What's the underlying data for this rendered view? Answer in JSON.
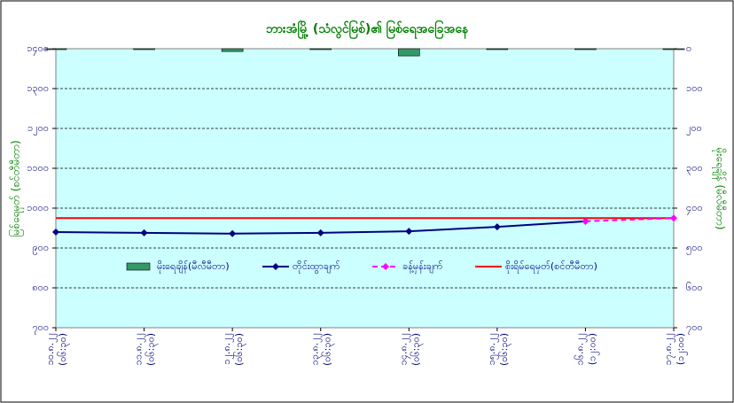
{
  "chart_data": {
    "type": "combo",
    "title": "ဘားအံမြို့ (သံလွင်မြစ်)၏ မြစ်ရေအခြေအနေ",
    "y_label": "မြစ်ရေမှတ် (စင်တီမီတာ)",
    "y2_label": "မိုးရေချိန် (မီလီမီတာ)",
    "categories": [
      "၁၀.၈.၂၂",
      "၁၁.၈.၂၂",
      "၁၂.၈.၂၂",
      "၁၃.၈.၂၂",
      "၁၄.၈.၂၂",
      "၁၅.၈.၂၂",
      "၁၆.၈.၂၂",
      "၁၇.၈.၂၂"
    ],
    "category_sublabels": [
      "(၀၆:၃၀)",
      "(၀၆:၃၀)",
      "(၀၆:၃၀)",
      "(၀၆:၃၀)",
      "(၀၆:၃၀)",
      "(၀၆:၃၀)",
      "(၁၂:၀၀)",
      "(၁၂:၀၀)"
    ],
    "ylim": [
      700,
      1400
    ],
    "yticks": [
      {
        "value": 700,
        "label": "၇၀၀"
      },
      {
        "value": 800,
        "label": "၈၀၀"
      },
      {
        "value": 900,
        "label": "၉၀၀"
      },
      {
        "value": 1000,
        "label": "၁၀၀၀"
      },
      {
        "value": 1100,
        "label": "၁၁၀၀"
      },
      {
        "value": 1200,
        "label": "၁၂၀၀"
      },
      {
        "value": 1300,
        "label": "၁၃၀၀"
      },
      {
        "value": 1400,
        "label": "၁၄၀၀"
      }
    ],
    "y2lim": [
      0,
      700
    ],
    "y2_inverted": true,
    "y2ticks": [
      {
        "value": 0,
        "label": "၀"
      },
      {
        "value": 100,
        "label": "၁၀၀"
      },
      {
        "value": 200,
        "label": "၂၀၀"
      },
      {
        "value": 300,
        "label": "၃၀၀"
      },
      {
        "value": 400,
        "label": "၄၀၀"
      },
      {
        "value": 500,
        "label": "၅၀၀"
      },
      {
        "value": 600,
        "label": "၆၀၀"
      },
      {
        "value": 700,
        "label": "၇၀၀"
      }
    ],
    "grid": true,
    "series": [
      {
        "name": "မိုးရေချိန်(မီလီမီတာ)",
        "type": "bar",
        "axis": "y2",
        "color": "#339966",
        "values": [
          1,
          0,
          7,
          0,
          18,
          0,
          1,
          0
        ]
      },
      {
        "name": "တိုင်းထွာချက်",
        "type": "line",
        "color": "#000080",
        "values": [
          940,
          938,
          936,
          938,
          942,
          953,
          967,
          null
        ]
      },
      {
        "name": "ခန့်မှန်းချက်",
        "type": "line",
        "dashed": true,
        "color": "#ff00ff",
        "values": [
          null,
          null,
          null,
          null,
          null,
          null,
          967,
          975
        ]
      }
    ],
    "warning_level": {
      "name": "စိုးရိမ်ရေမှတ်(စင်တီမီတာ)",
      "color": "#ff0000",
      "value": 975
    }
  }
}
